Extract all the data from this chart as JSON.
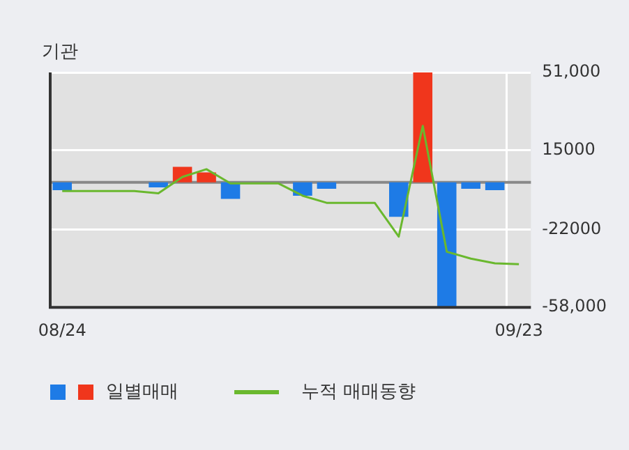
{
  "chart_data": {
    "type": "bar",
    "title": "기관",
    "categories": [
      "08/24",
      null,
      null,
      null,
      null,
      null,
      null,
      null,
      null,
      null,
      null,
      null,
      null,
      null,
      null,
      null,
      null,
      null,
      null,
      "09/23"
    ],
    "series": [
      {
        "name": "일별매매",
        "colors": [
          "#1e7be6",
          "#1e7be6",
          "#1e7be6",
          "#1e7be6",
          "#1e7be6",
          "#f0361c",
          "#f0361c",
          "#1e7be6",
          "#1e7be6",
          "#1e7be6",
          "#1e7be6",
          "#1e7be6",
          "#1e7be6",
          "#1e7be6",
          "#1e7be6",
          "#f0361c",
          "#1e7be6",
          "#1e7be6",
          "#1e7be6",
          "#1e7be6"
        ],
        "values": [
          -3600,
          0,
          0,
          0,
          -2300,
          7200,
          4600,
          -7700,
          0,
          0,
          -6200,
          -3000,
          0,
          0,
          -16000,
          51000,
          -58000,
          -3000,
          -3600,
          0
        ]
      },
      {
        "name": "누적 매매동향",
        "type": "line",
        "color": "#6ab82e",
        "values": [
          -4000,
          -4000,
          -4000,
          -4000,
          -5100,
          2500,
          6100,
          -500,
          -500,
          -500,
          -6200,
          -9500,
          -9500,
          -9500,
          -25200,
          26200,
          -32200,
          -35400,
          -37600,
          -38000
        ]
      }
    ],
    "ylim": [
      -58000,
      51000
    ],
    "yticks": [
      {
        "value": 51000,
        "label": "51,000"
      },
      {
        "value": 15000,
        "label": "15000"
      },
      {
        "value": -22000,
        "label": "-22000"
      },
      {
        "value": -58000,
        "label": "-58,000"
      }
    ],
    "ref_lines": [
      {
        "axis": "y",
        "value": 0,
        "color": "#888888"
      }
    ],
    "grid": true,
    "legend": "bottom left"
  }
}
